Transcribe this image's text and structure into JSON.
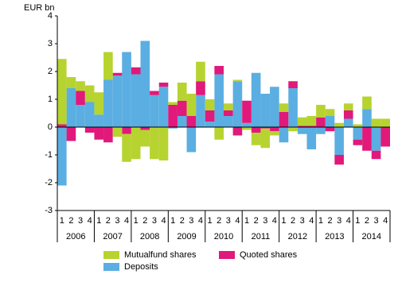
{
  "chart_data": {
    "type": "stacked-bar",
    "y_label": "EUR bn",
    "categories": [
      "1",
      "2",
      "3",
      "4",
      "1",
      "2",
      "3",
      "4",
      "1",
      "2",
      "3",
      "4",
      "1",
      "2",
      "3",
      "4",
      "1",
      "2",
      "3",
      "4",
      "1",
      "2",
      "3",
      "4",
      "1",
      "2",
      "3",
      "4",
      "1",
      "2",
      "3",
      "4",
      "1",
      "2",
      "3",
      "4"
    ],
    "years": [
      "2006",
      "2007",
      "2008",
      "2009",
      "2010",
      "2011",
      "2012",
      "2013",
      "2014"
    ],
    "series": [
      {
        "name": "Deposits",
        "color": "#5aaee2",
        "values": [
          -2.1,
          1.4,
          0.8,
          0.9,
          0.45,
          1.7,
          1.85,
          2.7,
          1.9,
          3.1,
          1.15,
          1.45,
          -0.05,
          0.4,
          -0.9,
          1.15,
          0.2,
          1.9,
          0.4,
          1.65,
          0.15,
          1.95,
          1.2,
          1.45,
          -0.55,
          1.4,
          -0.25,
          -0.8,
          -0.25,
          0.4,
          -1.0,
          0.3,
          -0.45,
          0.65,
          -0.85,
          0
        ]
      },
      {
        "name": "Quoted shares",
        "color": "#e0197b",
        "values": [
          0.1,
          -0.5,
          0.5,
          -0.2,
          -0.45,
          -0.55,
          0.1,
          -0.25,
          0.25,
          -0.1,
          0.15,
          0.15,
          0.8,
          0.55,
          0.4,
          0.5,
          0.4,
          0.3,
          0.2,
          -0.3,
          0.8,
          -0.2,
          -0.05,
          -0.15,
          0.55,
          0.25,
          0.05,
          0.05,
          0.35,
          -0.15,
          -0.35,
          0.3,
          -0.2,
          -0.85,
          -0.3,
          -0.7
        ]
      },
      {
        "name": "Mutualfund shares",
        "color": "#b7d330",
        "values": [
          2.35,
          0.4,
          0.35,
          0.6,
          0.8,
          1.0,
          -0.35,
          -1.0,
          -1.15,
          -0.6,
          -1.15,
          -1.2,
          0.1,
          0.65,
          0.8,
          0.7,
          0.4,
          -0.45,
          0.25,
          0.05,
          -0.1,
          -0.45,
          -0.7,
          -0.15,
          0.3,
          -0.15,
          0.3,
          0.35,
          0.45,
          0.25,
          0.15,
          0.25,
          0.1,
          0.45,
          0.3,
          0.3
        ]
      }
    ],
    "ylim": [
      -3,
      4
    ],
    "yticks": [
      -3,
      -2,
      -1,
      0,
      1,
      2,
      3,
      4
    ]
  }
}
